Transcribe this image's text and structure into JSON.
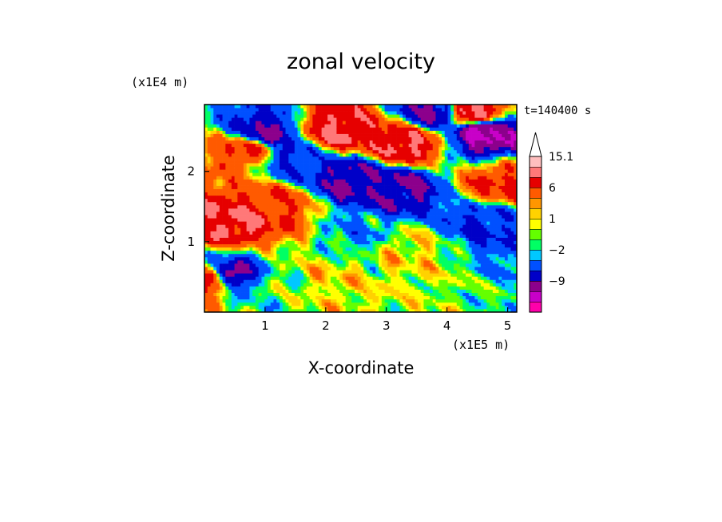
{
  "chart_data": {
    "type": "heatmap",
    "title": "zonal velocity",
    "xlabel": "X-coordinate",
    "ylabel": "Z-coordinate",
    "x_scale_label": "(x1E5 m)",
    "y_scale_label": "(x1E4 m)",
    "time_label": "t=140400 s",
    "xlim": [
      0,
      5.15
    ],
    "ylim": [
      0,
      2.95
    ],
    "x_ticks": [
      {
        "value": 1,
        "label": "1"
      },
      {
        "value": 2,
        "label": "2"
      },
      {
        "value": 3,
        "label": "3"
      },
      {
        "value": 4,
        "label": "4"
      },
      {
        "value": 5,
        "label": "5"
      }
    ],
    "y_ticks": [
      {
        "value": 1,
        "label": "1"
      },
      {
        "value": 2,
        "label": "2"
      }
    ],
    "colorbar": {
      "levels": [
        -15,
        -12,
        -9,
        -6,
        -3,
        -2,
        -1,
        0,
        1,
        2,
        3,
        6,
        9,
        12,
        15.1
      ],
      "colors": [
        "#ff00aa",
        "#c800c8",
        "#8c008c",
        "#0000c8",
        "#0050ff",
        "#00c8ff",
        "#00ff64",
        "#64ff00",
        "#ffff00",
        "#ffd200",
        "#ff9600",
        "#ff5a00",
        "#e60000",
        "#ff7878",
        "#ffbebe"
      ],
      "tick_labels": [
        {
          "value": 15.1,
          "label": "15.1"
        },
        {
          "value": 6,
          "label": "6"
        },
        {
          "value": 1,
          "label": "1"
        },
        {
          "value": -2,
          "label": "−2"
        },
        {
          "value": -9,
          "label": "−9"
        }
      ],
      "extend": "max"
    },
    "field_features": [
      {
        "x": 0.5,
        "z": 1.3,
        "u": 9
      },
      {
        "x": 1.1,
        "z": 1.5,
        "u": 6
      },
      {
        "x": 0.7,
        "z": 2.3,
        "u": 6
      },
      {
        "x": 1.4,
        "z": 2.2,
        "u": -6
      },
      {
        "x": 1.0,
        "z": 2.55,
        "u": -9
      },
      {
        "x": 2.4,
        "z": 1.9,
        "u": -9
      },
      {
        "x": 3.2,
        "z": 1.75,
        "u": -9
      },
      {
        "x": 2.2,
        "z": 2.6,
        "u": 9
      },
      {
        "x": 3.3,
        "z": 2.4,
        "u": 9
      },
      {
        "x": 3.8,
        "z": 2.85,
        "u": -9
      },
      {
        "x": 4.6,
        "z": 2.55,
        "u": -12
      },
      {
        "x": 4.4,
        "z": 2.85,
        "u": 9
      },
      {
        "x": 0.4,
        "z": 0.5,
        "u": -12
      },
      {
        "x": 0.15,
        "z": 0.45,
        "u": 9
      },
      {
        "x": 3.3,
        "z": 0.9,
        "u": 1
      },
      {
        "x": 2.0,
        "z": 0.45,
        "u": 1
      },
      {
        "x": 4.6,
        "z": 1.3,
        "u": -6
      },
      {
        "x": 4.9,
        "z": 1.8,
        "u": 6
      },
      {
        "x": 1.2,
        "z": 0.4,
        "u": -1
      },
      {
        "x": 2.6,
        "z": 1.1,
        "u": -3
      }
    ]
  }
}
